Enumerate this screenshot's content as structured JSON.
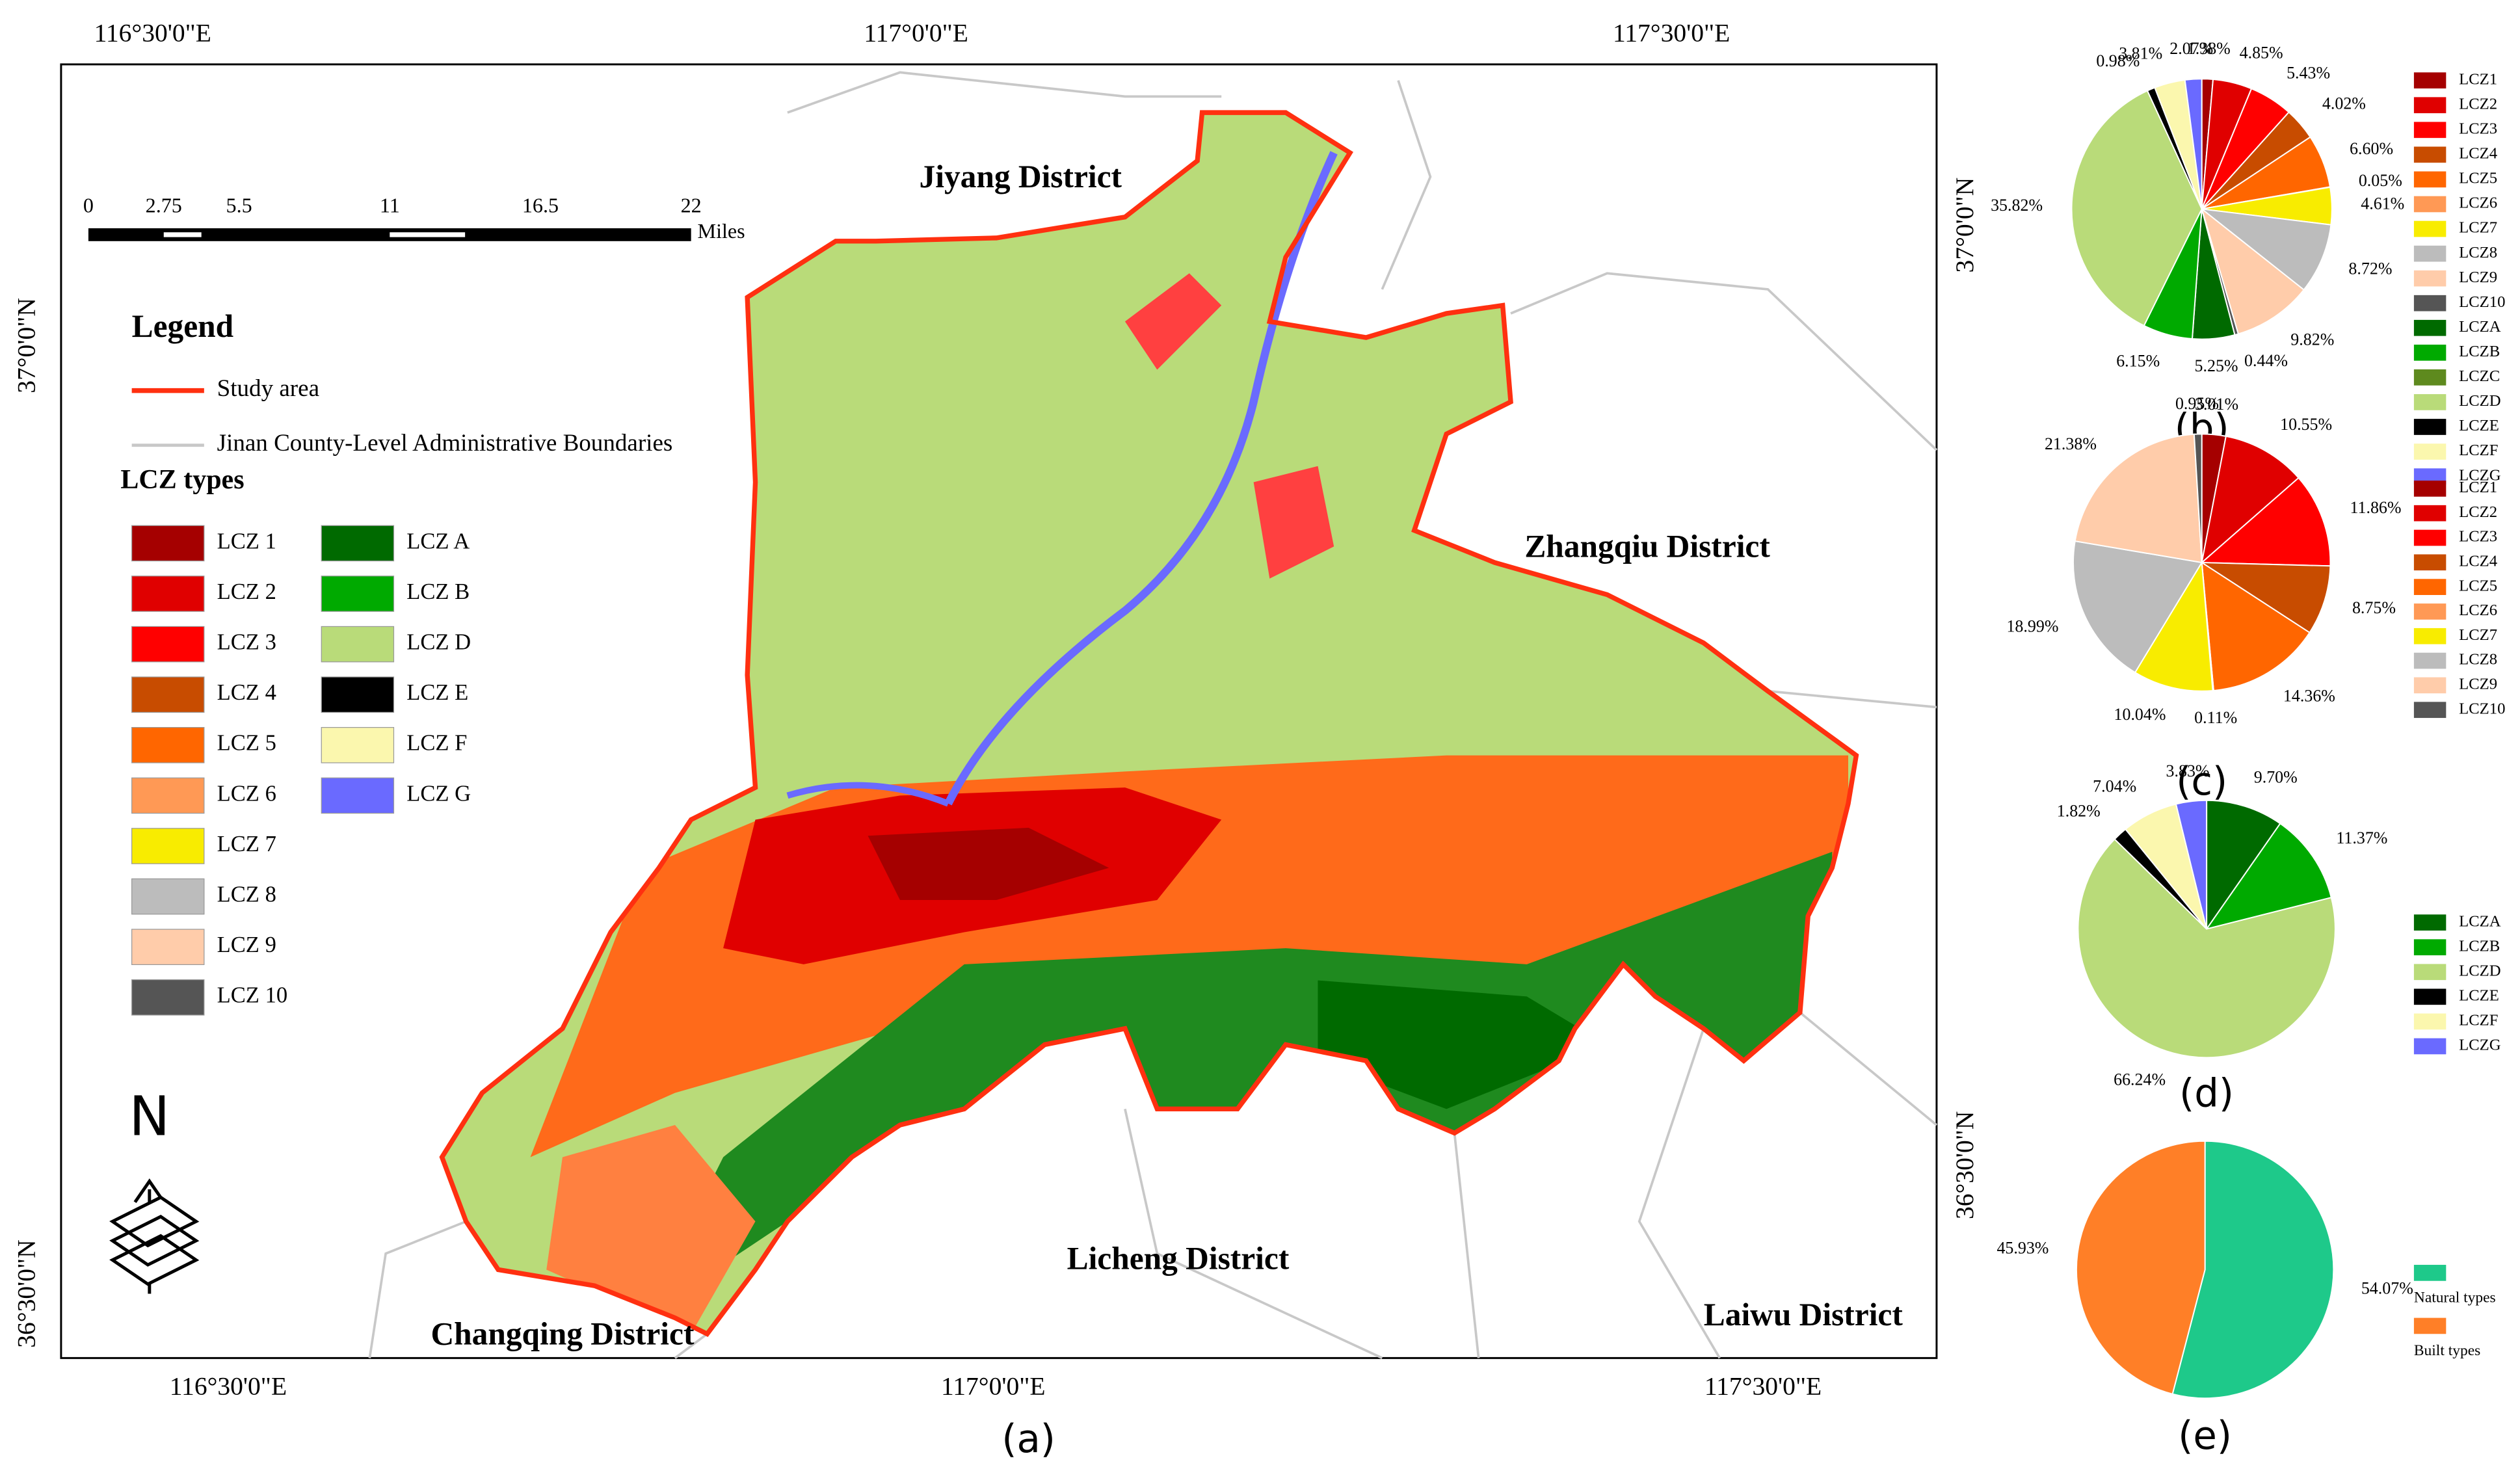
{
  "map": {
    "panel_label": "(a)",
    "graticule": {
      "top": [
        "116°30'0\"E",
        "117°0'0\"E",
        "117°30'0\"E"
      ],
      "bottom": [
        "116°30'0\"E",
        "117°0'0\"E",
        "117°30'0\"E"
      ],
      "left": [
        "37°0'0\"N",
        "36°30'0\"N"
      ],
      "right": [
        "37°0'0\"N",
        "36°30'0\"N"
      ]
    },
    "districts": [
      "Jiyang District",
      "Zhangqiu District",
      "Licheng District",
      "Changqing District",
      "Laiwu District"
    ],
    "scale_bar": {
      "ticks": [
        0,
        2.75,
        5.5,
        11,
        16.5,
        22
      ],
      "unit": "Miles"
    },
    "north": "N",
    "legend": {
      "title": "Legend",
      "items": [
        "Study area",
        "Jinan County-Level Administrative Boundaries"
      ],
      "lcz_title": "LCZ types",
      "lcz": [
        {
          "label": "LCZ 1",
          "color": "#a50000"
        },
        {
          "label": "LCZ 2",
          "color": "#e00000"
        },
        {
          "label": "LCZ 3",
          "color": "#ff0000"
        },
        {
          "label": "LCZ 4",
          "color": "#c84c00"
        },
        {
          "label": "LCZ 5",
          "color": "#ff6600"
        },
        {
          "label": "LCZ 6",
          "color": "#ff9955"
        },
        {
          "label": "LCZ 7",
          "color": "#f8ec00"
        },
        {
          "label": "LCZ 8",
          "color": "#bcbcbc"
        },
        {
          "label": "LCZ 9",
          "color": "#ffccaa"
        },
        {
          "label": "LCZ 10",
          "color": "#555555"
        },
        {
          "label": "LCZ A",
          "color": "#006a00"
        },
        {
          "label": "LCZ B",
          "color": "#00aa00"
        },
        {
          "label": "LCZ D",
          "color": "#b9db79"
        },
        {
          "label": "LCZ E",
          "color": "#000000"
        },
        {
          "label": "LCZ F",
          "color": "#fbf7ae"
        },
        {
          "label": "LCZ G",
          "color": "#6a6aff"
        }
      ]
    }
  },
  "chart_data": [
    {
      "type": "pie",
      "title": "(b)",
      "categories": [
        "LCZ1",
        "LCZ2",
        "LCZ3",
        "LCZ4",
        "LCZ5",
        "LCZ6",
        "LCZ7",
        "LCZ8",
        "LCZ9",
        "LCZ10",
        "LCZA",
        "LCZB",
        "LCZC",
        "LCZD",
        "LCZE",
        "LCZF",
        "LCZG"
      ],
      "values": [
        1.38,
        4.85,
        5.43,
        4.02,
        6.6,
        0.05,
        4.61,
        8.72,
        9.82,
        0.44,
        5.25,
        6.15,
        null,
        35.82,
        0.98,
        3.81,
        2.07
      ],
      "value_labels": [
        "1.38%",
        "4.85%",
        "5.43%",
        "4.02%",
        "6.60%",
        "0.05%",
        "4.61%",
        "8.72%",
        "9.82%",
        "0.44%",
        "5.25%",
        "6.15%",
        null,
        "35.82%",
        "0.98%",
        "3.81%",
        "2.07%"
      ],
      "colors": [
        "#a50000",
        "#e00000",
        "#ff0000",
        "#c84c00",
        "#ff6600",
        "#ff9955",
        "#f8ec00",
        "#bcbcbc",
        "#ffccaa",
        "#555555",
        "#006a00",
        "#00aa00",
        "#5e8a1e",
        "#b9db79",
        "#000000",
        "#fbf7ae",
        "#6a6aff"
      ]
    },
    {
      "type": "pie",
      "title": "(c)",
      "categories": [
        "LCZ1",
        "LCZ2",
        "LCZ3",
        "LCZ4",
        "LCZ5",
        "LCZ6",
        "LCZ7",
        "LCZ8",
        "LCZ9",
        "LCZ10"
      ],
      "values": [
        3.01,
        10.55,
        11.86,
        8.75,
        14.36,
        0.11,
        10.04,
        18.99,
        21.38,
        0.95
      ],
      "value_labels": [
        "3.01%",
        "10.55%",
        "11.86%",
        "8.75%",
        "14.36%",
        "0.11%",
        "10.04%",
        "18.99%",
        "21.38%",
        "0.95%"
      ],
      "colors": [
        "#a50000",
        "#e00000",
        "#ff0000",
        "#c84c00",
        "#ff6600",
        "#ff9955",
        "#f8ec00",
        "#bcbcbc",
        "#ffccaa",
        "#555555"
      ]
    },
    {
      "type": "pie",
      "title": "(d)",
      "categories": [
        "LCZA",
        "LCZB",
        "LCZD",
        "LCZE",
        "LCZF",
        "LCZG"
      ],
      "values": [
        9.7,
        11.37,
        66.24,
        1.82,
        7.04,
        3.83
      ],
      "value_labels": [
        "9.70%",
        "11.37%",
        "66.24%",
        "1.82%",
        "7.04%",
        "3.83%"
      ],
      "colors": [
        "#006a00",
        "#00aa00",
        "#b9db79",
        "#000000",
        "#fbf7ae",
        "#6a6aff"
      ]
    },
    {
      "type": "pie",
      "title": "(e)",
      "categories": [
        "Natural types",
        "Built types"
      ],
      "values": [
        54.07,
        45.93
      ],
      "value_labels": [
        "54.07%",
        "45.93%"
      ],
      "colors": [
        "#1ec98a",
        "#ff7f27"
      ]
    }
  ]
}
